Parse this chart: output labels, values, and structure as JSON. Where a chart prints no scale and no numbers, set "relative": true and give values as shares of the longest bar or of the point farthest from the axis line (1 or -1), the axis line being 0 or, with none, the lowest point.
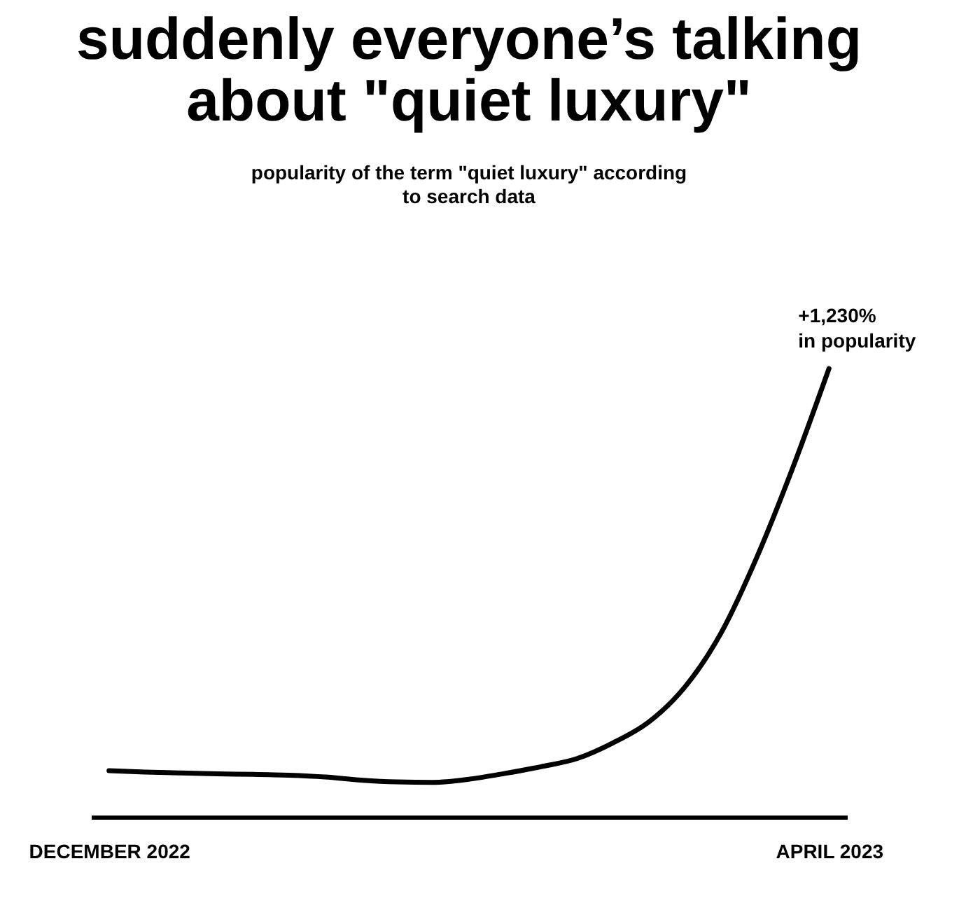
{
  "chart_data": {
    "type": "line",
    "title": [
      "suddenly everyone’s talking",
      "about \"quiet luxury\""
    ],
    "subtitle": [
      "popularity of the term \"quiet luxury\" according",
      "to search data"
    ],
    "relative": true,
    "categories": [
      "DECEMBER 2022",
      null,
      null,
      null,
      null,
      null,
      null,
      null,
      null,
      null,
      null,
      null,
      null,
      null,
      null,
      null,
      null,
      null,
      null,
      null,
      "APRIL 2023"
    ],
    "series": [
      {
        "color": "#000000",
        "values": [
          0.103,
          0.1,
          0.098,
          0.096,
          0.095,
          0.093,
          0.089,
          0.082,
          0.078,
          0.077,
          0.084,
          0.097,
          0.112,
          0.13,
          0.165,
          0.212,
          0.29,
          0.41,
          0.58,
          0.78,
          1
        ]
      }
    ],
    "annotations": [
      {
        "text": "+1,230%\nin popularity",
        "x": "APRIL 2023",
        "y": 1
      }
    ],
    "marker": "none",
    "line_style": "solid"
  }
}
